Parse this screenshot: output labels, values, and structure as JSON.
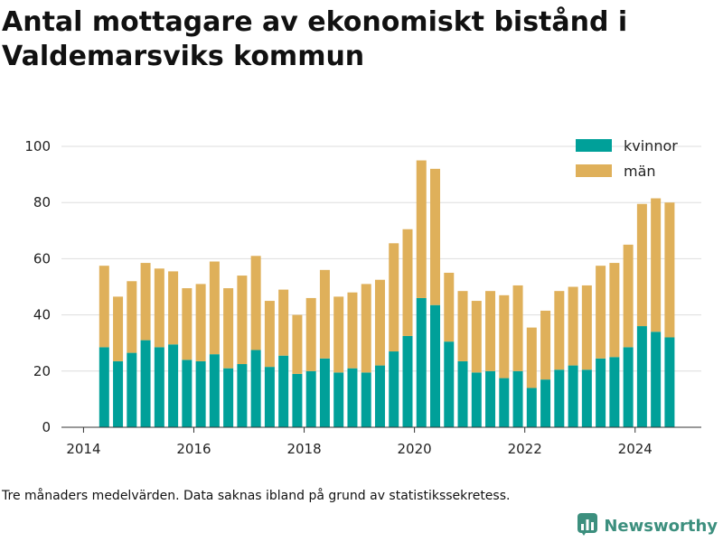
{
  "title": "Antal mottagare av ekonomiskt bistånd i Valdemarsviks kommun",
  "footnote": "Tre månaders medelvärden. Data saknas ibland på grund av statistikssekretess.",
  "brand": {
    "name": "Newsworthy",
    "logo_icon": "bar-chart-logo-icon",
    "color": "#3c8f7e"
  },
  "colors": {
    "kvinnor": "#00a099",
    "man": "#dfb05a",
    "grid": "#dddddd",
    "axis": "#333333"
  },
  "chart_data": {
    "type": "bar",
    "stacked": true,
    "x_ticks": [
      "2014",
      "2016",
      "2018",
      "2020",
      "2022",
      "2024"
    ],
    "y_ticks": [
      "0",
      "20",
      "40",
      "60",
      "80",
      "100"
    ],
    "ylim": [
      0,
      100
    ],
    "xlim": [
      2013.6,
      2025.2
    ],
    "grid": true,
    "legend_position": "top-right",
    "x": [
      2014.375,
      2014.625,
      2014.875,
      2015.125,
      2015.375,
      2015.625,
      2015.875,
      2016.125,
      2016.375,
      2016.625,
      2016.875,
      2017.125,
      2017.375,
      2017.625,
      2017.875,
      2018.125,
      2018.375,
      2018.625,
      2018.875,
      2019.125,
      2019.375,
      2019.625,
      2019.875,
      2020.125,
      2020.375,
      2020.625,
      2020.875,
      2021.125,
      2021.375,
      2021.625,
      2021.875,
      2022.125,
      2022.375,
      2022.625,
      2022.875,
      2023.125,
      2023.375,
      2023.625,
      2023.875,
      2024.125,
      2024.375,
      2024.625
    ],
    "series": [
      {
        "name": "kvinnor",
        "color": "#00a099",
        "values": [
          28.5,
          23.5,
          26.5,
          31,
          28.5,
          29.5,
          24,
          23.5,
          26,
          21,
          22.5,
          27.5,
          21.5,
          25.5,
          19,
          20,
          24.5,
          19.5,
          21,
          19.5,
          22,
          27,
          32.5,
          46,
          43.5,
          30.5,
          23.5,
          19.5,
          20,
          17.5,
          20,
          14,
          17,
          20.5,
          22,
          20.5,
          24.5,
          25,
          28.5,
          36,
          34,
          32
        ]
      },
      {
        "name": "män",
        "color": "#dfb05a",
        "values": [
          29,
          23,
          25.5,
          27.5,
          28,
          26,
          25.5,
          27.5,
          33,
          28.5,
          31.5,
          33.5,
          23.5,
          23.5,
          21,
          26,
          31.5,
          27,
          27,
          31.5,
          30.5,
          38.5,
          38,
          49,
          48.5,
          24.5,
          25,
          25.5,
          28.5,
          29.5,
          30.5,
          21.5,
          24.5,
          28,
          28,
          30,
          33,
          33.5,
          36.5,
          43.5,
          47.5,
          48
        ]
      }
    ]
  }
}
